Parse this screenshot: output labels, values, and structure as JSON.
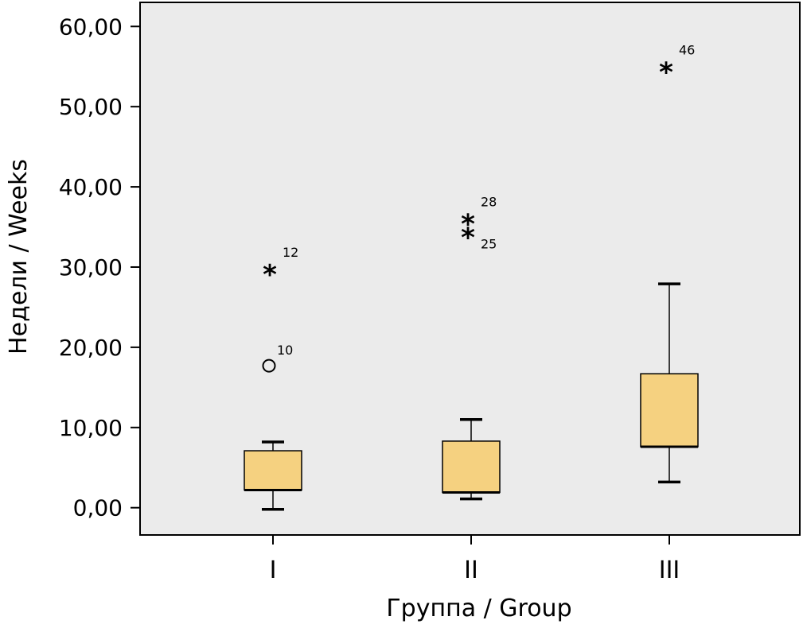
{
  "chart_data": {
    "type": "boxplot",
    "xlabel": "Группа / Group",
    "ylabel": "Недели / Weeks",
    "ylim": [
      -3.4,
      63
    ],
    "yticks": [
      0,
      10,
      20,
      30,
      40,
      50,
      60
    ],
    "ytick_labels": [
      "0,00",
      "10,00",
      "20,00",
      "30,00",
      "40,00",
      "50,00",
      "60,00"
    ],
    "grid": false,
    "colors": {
      "plot_background": "#ebebeb",
      "box_fill": "#f5d180",
      "line": "#000000"
    },
    "groups": [
      {
        "category": "I",
        "whisker_low": -0.2,
        "q1": 2.2,
        "median": 2.2,
        "q3": 7.1,
        "whisker_high": 8.2,
        "outliers": [
          {
            "value": 17.7,
            "label": "10",
            "marker": "circle"
          },
          {
            "value": 29.9,
            "label": "12",
            "marker": "star"
          }
        ]
      },
      {
        "category": "II",
        "whisker_low": 1.1,
        "q1": 1.9,
        "median": 1.9,
        "q3": 8.3,
        "whisker_high": 11.0,
        "outliers": [
          {
            "value": 36.2,
            "label": "28",
            "marker": "star"
          },
          {
            "value": 34.5,
            "label": "25",
            "marker": "star"
          }
        ]
      },
      {
        "category": "III",
        "whisker_low": 3.2,
        "q1": 7.6,
        "median": 7.6,
        "q3": 16.7,
        "whisker_high": 27.9,
        "outliers": [
          {
            "value": 55.1,
            "label": "46",
            "marker": "star"
          }
        ]
      }
    ]
  }
}
